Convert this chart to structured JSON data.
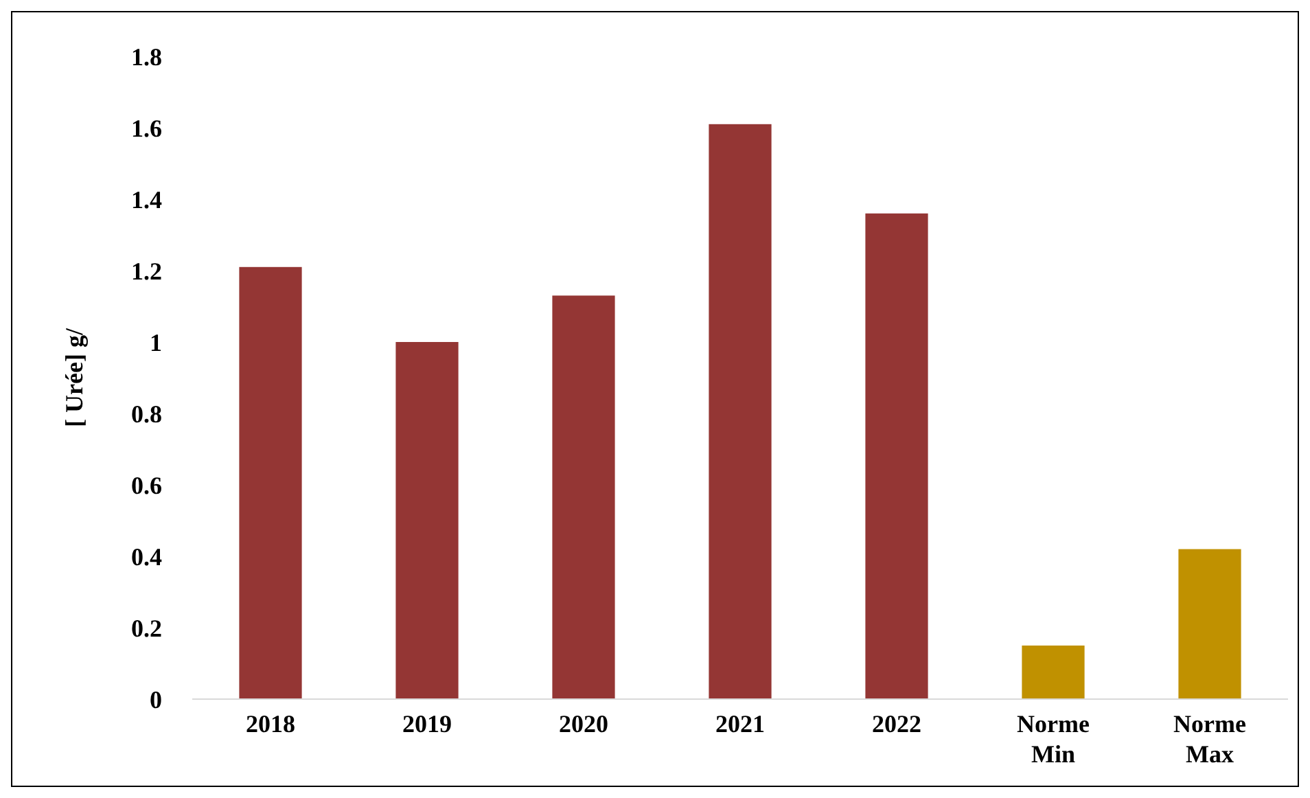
{
  "chart_data": {
    "type": "bar",
    "ylabel": "[ Urée] g/",
    "categories": [
      "2018",
      "2019",
      "2020",
      "2021",
      "2022",
      "Norme Min",
      "Norme Max"
    ],
    "values": [
      1.21,
      1.0,
      1.13,
      1.61,
      1.36,
      0.15,
      0.42
    ],
    "colors": [
      "#943634",
      "#943634",
      "#943634",
      "#943634",
      "#943634",
      "#c09100",
      "#c09100"
    ],
    "ylim": [
      0,
      1.8
    ],
    "yticks": [
      0,
      0.2,
      0.4,
      0.6,
      0.8,
      1,
      1.2,
      1.4,
      1.6,
      1.8
    ],
    "grid": false
  }
}
